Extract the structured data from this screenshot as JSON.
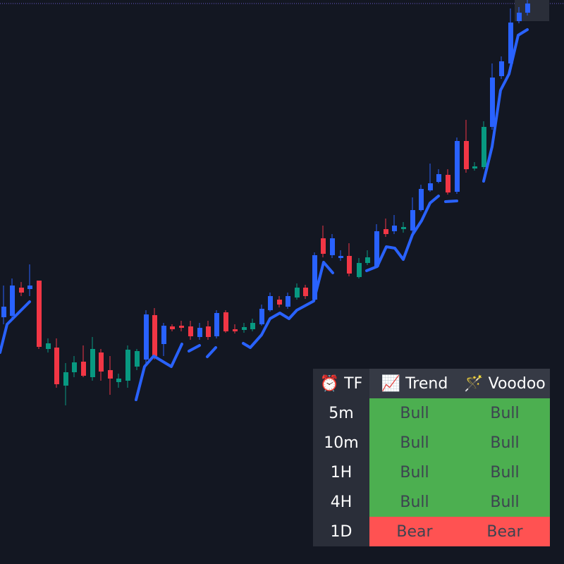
{
  "table": {
    "header": [
      "⏰ TF",
      "📈 Trend",
      "🪄 Voodoo"
    ],
    "rows": [
      [
        "5m",
        "Bull",
        "Bull"
      ],
      [
        "10m",
        "Bull",
        "Bull"
      ],
      [
        "1H",
        "Bull",
        "Bull"
      ],
      [
        "4H",
        "Bull",
        "Bull"
      ],
      [
        "1D",
        "Bear",
        "Bear"
      ]
    ],
    "row_colors": [
      "#4caf50",
      "#4caf50",
      "#4caf50",
      "#4caf50",
      "#ff5252"
    ]
  }
}
